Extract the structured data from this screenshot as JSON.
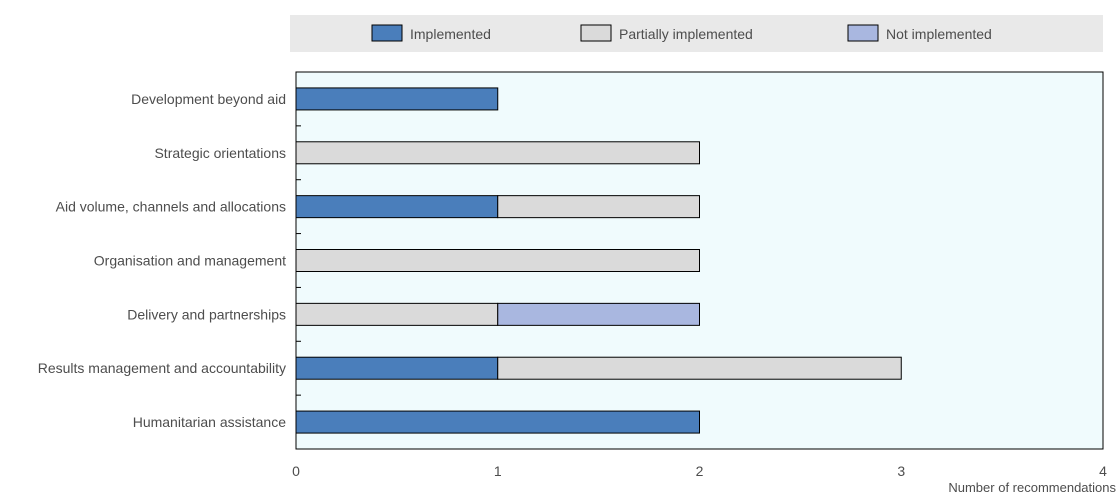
{
  "chart_data": {
    "type": "bar",
    "orientation": "horizontal",
    "stacked": true,
    "categories": [
      "Development beyond aid",
      "Strategic orientations",
      "Aid volume, channels and allocations",
      "Organisation and management",
      "Delivery and partnerships",
      "Results management and accountability",
      "Humanitarian assistance"
    ],
    "series": [
      {
        "name": "Implemented",
        "color": "#4a7ebb",
        "values": [
          1,
          0,
          1,
          0,
          0,
          1,
          2
        ]
      },
      {
        "name": "Partially implemented",
        "color": "#dadada",
        "values": [
          0,
          2,
          1,
          2,
          1,
          2,
          0
        ]
      },
      {
        "name": "Not implemented",
        "color": "#a9b7e0",
        "values": [
          0,
          0,
          0,
          0,
          1,
          0,
          0
        ]
      }
    ],
    "xlim": [
      0,
      4
    ],
    "xticks": [
      "0",
      "1",
      "2",
      "3",
      "4"
    ],
    "xlabel": "Number of recommendations",
    "legend_position": "top",
    "plot_background": "#f0fbfd",
    "legend_background": "#e9e9e9",
    "grid": false
  }
}
